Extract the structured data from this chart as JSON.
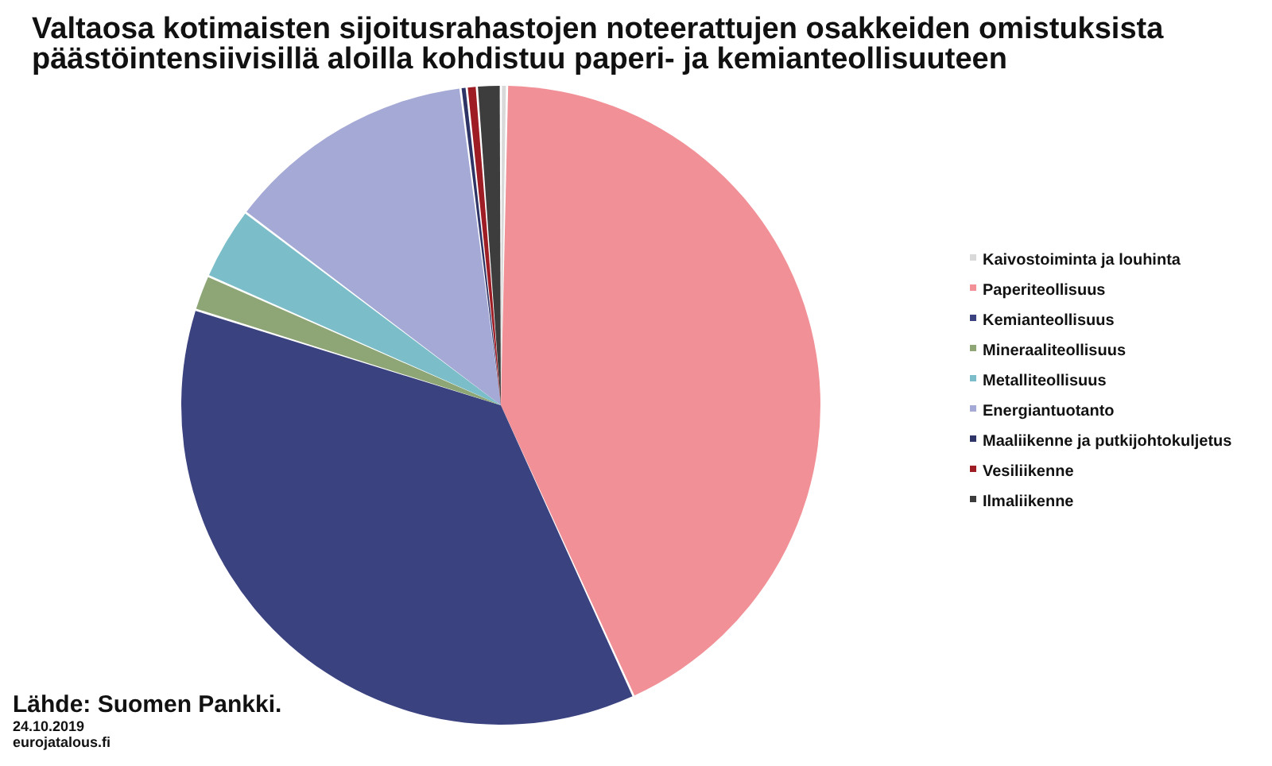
{
  "chart_data": {
    "type": "pie",
    "title": "Valtaosa kotimaisten sijoitusrahastojen noteerattujen osakkeiden omistuksista\npäästöintensiivisillä aloilla kohdistuu paperi- ja kemianteollisuuteen",
    "categories": [
      "Kaivostoiminta ja louhinta",
      "Paperiteollisuus",
      "Kemianteollisuus",
      "Mineraaliteollisuus",
      "Metalliteollisuus",
      "Energiantuotanto",
      "Maaliikenne ja putkijohtokuljetus",
      "Vesiliikenne",
      "Ilmaliikenne"
    ],
    "values": [
      0.2,
      43.2,
      36.9,
      1.7,
      3.6,
      12.7,
      0.2,
      0.4,
      1.1
    ],
    "colors": [
      "#d9d9d9",
      "#f19096",
      "#3b4280",
      "#8ea676",
      "#7bbec9",
      "#a5a9d5",
      "#2e3466",
      "#9e1c23",
      "#3d3d3d"
    ],
    "legend": "right",
    "annotations": [
      "Lähde: Suomen Pankki.",
      "24.10.2019",
      "eurojatalous.fi"
    ]
  }
}
